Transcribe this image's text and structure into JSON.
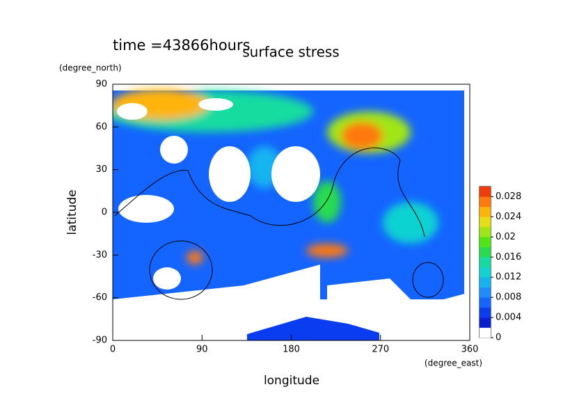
{
  "chart_data": {
    "type": "contour",
    "title": "surface stress",
    "annotation": "time =43866hours",
    "x_label": "longitude",
    "x_unit": "(degree_east)",
    "y_label": "latitude",
    "y_unit": "(degree_north)",
    "xlim": [
      0,
      360
    ],
    "xticks": [
      0,
      90,
      180,
      270,
      360
    ],
    "ylim": [
      -90,
      90
    ],
    "yticks": [
      -90,
      -60,
      -30,
      0,
      30,
      60,
      90
    ],
    "colorbar": {
      "lim": [
        0,
        0.03
      ],
      "ticks": [
        0,
        0.004,
        0.008,
        0.012,
        0.016,
        0.02,
        0.024,
        0.028
      ],
      "colors": [
        "#ffffff",
        "#0a1fd0",
        "#0a3cf0",
        "#1464ff",
        "#1e8cff",
        "#14b4f0",
        "#10d2d2",
        "#14dca0",
        "#28dc50",
        "#50e614",
        "#a0e614",
        "#e6dc14",
        "#ffb40a",
        "#ff780a",
        "#f03c0a"
      ]
    }
  }
}
